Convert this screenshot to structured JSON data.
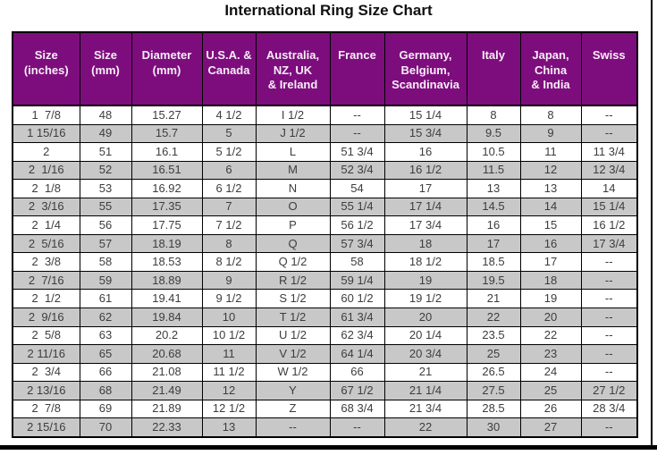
{
  "title": "International Ring Size Chart",
  "colors": {
    "header_bg": "#7d0d7d",
    "header_text": "#f7eef7",
    "stripe_bg": "#c8c8c8",
    "row_bg": "#ffffff",
    "border": "#000000",
    "cell_text": "#3d3d3d"
  },
  "chart_data": {
    "type": "table",
    "title": "International Ring Size Chart",
    "columns": [
      {
        "label": "Size\n(inches)"
      },
      {
        "label": "Size\n(mm)"
      },
      {
        "label": "Diameter\n(mm)"
      },
      {
        "label": "U.S.A. &\nCanada"
      },
      {
        "label": "Australia,\nNZ, UK\n& Ireland"
      },
      {
        "label": "France"
      },
      {
        "label": "Germany,\nBelgium,\nScandinavia"
      },
      {
        "label": "Italy"
      },
      {
        "label": "Japan,\nChina\n& India"
      },
      {
        "label": "Swiss"
      }
    ],
    "rows": [
      [
        "1  7/8",
        "48",
        "15.27",
        "4 1/2",
        "I 1/2",
        "--",
        "15 1/4",
        "8",
        "8",
        "--"
      ],
      [
        "1 15/16",
        "49",
        "15.7",
        "5",
        "J 1/2",
        "--",
        "15 3/4",
        "9.5",
        "9",
        "--"
      ],
      [
        "2",
        "51",
        "16.1",
        "5 1/2",
        "L",
        "51 3/4",
        "16",
        "10.5",
        "11",
        "11 3/4"
      ],
      [
        "2  1/16",
        "52",
        "16.51",
        "6",
        "M",
        "52 3/4",
        "16 1/2",
        "11.5",
        "12",
        "12 3/4"
      ],
      [
        "2  1/8",
        "53",
        "16.92",
        "6 1/2",
        "N",
        "54",
        "17",
        "13",
        "13",
        "14"
      ],
      [
        "2  3/16",
        "55",
        "17.35",
        "7",
        "O",
        "55 1/4",
        "17 1/4",
        "14.5",
        "14",
        "15 1/4"
      ],
      [
        "2  1/4",
        "56",
        "17.75",
        "7 1/2",
        "P",
        "56 1/2",
        "17 3/4",
        "16",
        "15",
        "16 1/2"
      ],
      [
        "2  5/16",
        "57",
        "18.19",
        "8",
        "Q",
        "57 3/4",
        "18",
        "17",
        "16",
        "17 3/4"
      ],
      [
        "2  3/8",
        "58",
        "18.53",
        "8 1/2",
        "Q 1/2",
        "58",
        "18 1/2",
        "18.5",
        "17",
        "--"
      ],
      [
        "2  7/16",
        "59",
        "18.89",
        "9",
        "R 1/2",
        "59 1/4",
        "19",
        "19.5",
        "18",
        "--"
      ],
      [
        "2  1/2",
        "61",
        "19.41",
        "9 1/2",
        "S 1/2",
        "60 1/2",
        "19 1/2",
        "21",
        "19",
        "--"
      ],
      [
        "2  9/16",
        "62",
        "19.84",
        "10",
        "T 1/2",
        "61 3/4",
        "20",
        "22",
        "20",
        "--"
      ],
      [
        "2  5/8",
        "63",
        "20.2",
        "10 1/2",
        "U 1/2",
        "62 3/4",
        "20 1/4",
        "23.5",
        "22",
        "--"
      ],
      [
        "2 11/16",
        "65",
        "20.68",
        "11",
        "V 1/2",
        "64 1/4",
        "20 3/4",
        "25",
        "23",
        "--"
      ],
      [
        "2  3/4",
        "66",
        "21.08",
        "11 1/2",
        "W 1/2",
        "66",
        "21",
        "26.5",
        "24",
        "--"
      ],
      [
        "2 13/16",
        "68",
        "21.49",
        "12",
        "Y",
        "67 1/2",
        "21 1/4",
        "27.5",
        "25",
        "27 1/2"
      ],
      [
        "2  7/8",
        "69",
        "21.89",
        "12 1/2",
        "Z",
        "68 3/4",
        "21 3/4",
        "28.5",
        "26",
        "28 3/4"
      ],
      [
        "2 15/16",
        "70",
        "22.33",
        "13",
        "--",
        "--",
        "22",
        "30",
        "27",
        "--"
      ]
    ]
  }
}
